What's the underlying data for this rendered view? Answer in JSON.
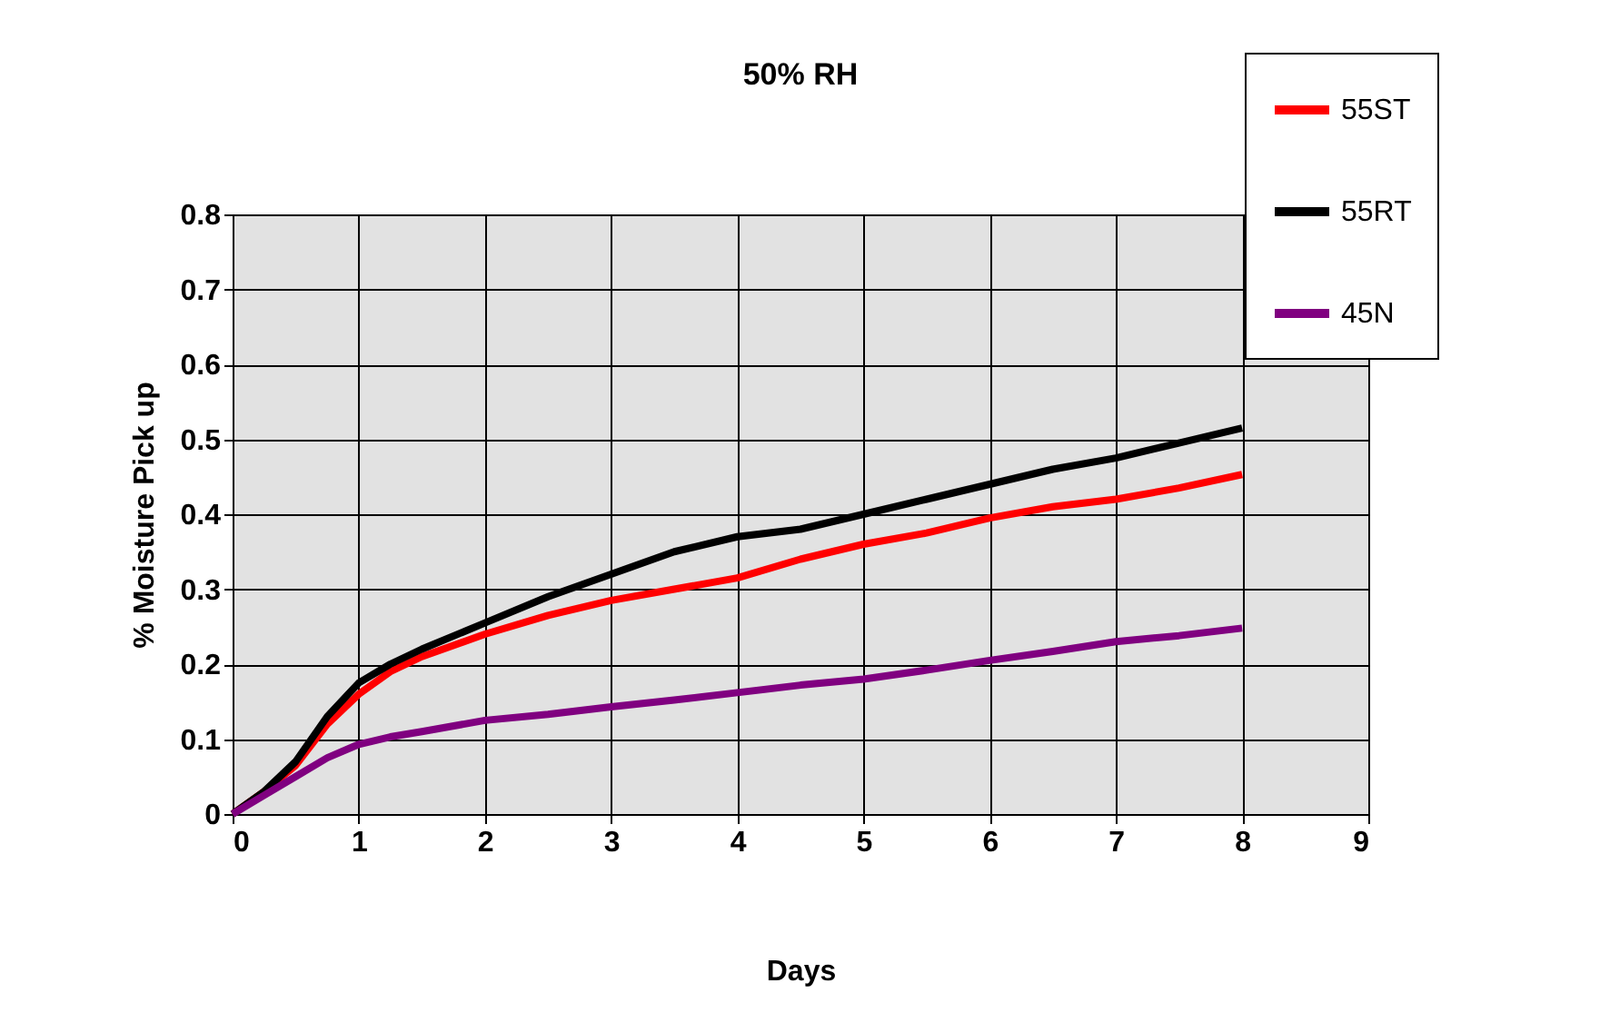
{
  "chart_data": {
    "type": "line",
    "title": "50% RH",
    "xlabel": "Days",
    "ylabel": "% Moisture Pick up",
    "x": [
      0,
      0.25,
      0.5,
      0.75,
      1,
      1.25,
      1.5,
      2,
      2.5,
      3,
      3.5,
      4,
      4.5,
      5,
      5.5,
      6,
      6.5,
      7,
      7.5,
      8
    ],
    "series": [
      {
        "name": "55ST",
        "color": "#ff0000",
        "values": [
          0,
          0.03,
          0.065,
          0.12,
          0.16,
          0.19,
          0.21,
          0.24,
          0.265,
          0.285,
          0.3,
          0.315,
          0.34,
          0.36,
          0.375,
          0.395,
          0.41,
          0.42,
          0.435,
          0.453
        ]
      },
      {
        "name": "55RT",
        "color": "#000000",
        "values": [
          0,
          0.03,
          0.07,
          0.13,
          0.175,
          0.2,
          0.22,
          0.255,
          0.29,
          0.32,
          0.35,
          0.37,
          0.38,
          0.4,
          0.42,
          0.44,
          0.46,
          0.475,
          0.495,
          0.515
        ]
      },
      {
        "name": "45N",
        "color": "#800080",
        "values": [
          0,
          0.025,
          0.05,
          0.075,
          0.093,
          0.103,
          0.11,
          0.125,
          0.133,
          0.143,
          0.152,
          0.162,
          0.172,
          0.18,
          0.192,
          0.205,
          0.217,
          0.23,
          0.238,
          0.248
        ]
      }
    ],
    "xlim": [
      0,
      9
    ],
    "xticks": [
      0,
      1,
      2,
      3,
      4,
      5,
      6,
      7,
      8,
      9
    ],
    "ylim": [
      0,
      0.8
    ],
    "yticks": [
      0,
      0.1,
      0.2,
      0.3,
      0.4,
      0.5,
      0.6,
      0.7,
      0.8
    ],
    "grid": true,
    "legend": "top right",
    "marker": "none",
    "line_style": "solid"
  }
}
